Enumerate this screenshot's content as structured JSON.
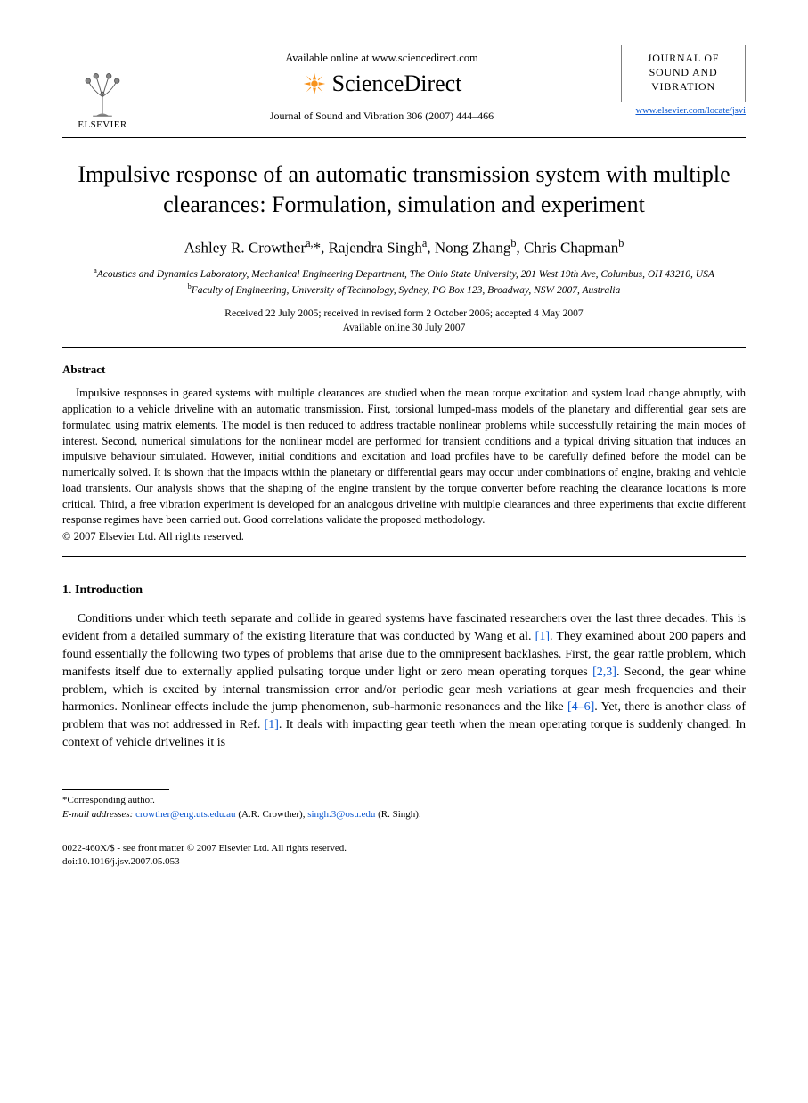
{
  "header": {
    "available_online": "Available online at www.sciencedirect.com",
    "sciencedirect": "ScienceDirect",
    "citation": "Journal of Sound and Vibration 306 (2007) 444–466",
    "elsevier_label": "ELSEVIER",
    "journal_box_line1": "JOURNAL OF",
    "journal_box_line2": "SOUND AND",
    "journal_box_line3": "VIBRATION",
    "journal_link": "www.elsevier.com/locate/jsvi"
  },
  "title": "Impulsive response of an automatic transmission system with multiple clearances: Formulation, simulation and experiment",
  "authors_html": "Ashley R. Crowther<sup>a,</sup>*, Rajendra Singh<sup>a</sup>, Nong Zhang<sup>b</sup>, Chris Chapman<sup>b</sup>",
  "affiliations": {
    "a": "Acoustics and Dynamics Laboratory, Mechanical Engineering Department, The Ohio State University, 201 West 19th Ave, Columbus, OH 43210, USA",
    "b": "Faculty of Engineering, University of Technology, Sydney, PO Box 123, Broadway, NSW 2007, Australia"
  },
  "dates": {
    "line1": "Received 22 July 2005; received in revised form 2 October 2006; accepted 4 May 2007",
    "line2": "Available online 30 July 2007"
  },
  "abstract": {
    "heading": "Abstract",
    "body": "Impulsive responses in geared systems with multiple clearances are studied when the mean torque excitation and system load change abruptly, with application to a vehicle driveline with an automatic transmission. First, torsional lumped-mass models of the planetary and differential gear sets are formulated using matrix elements. The model is then reduced to address tractable nonlinear problems while successfully retaining the main modes of interest. Second, numerical simulations for the nonlinear model are performed for transient conditions and a typical driving situation that induces an impulsive behaviour simulated. However, initial conditions and excitation and load profiles have to be carefully defined before the model can be numerically solved. It is shown that the impacts within the planetary or differential gears may occur under combinations of engine, braking and vehicle load transients. Our analysis shows that the shaping of the engine transient by the torque converter before reaching the clearance locations is more critical. Third, a free vibration experiment is developed for an analogous driveline with multiple clearances and three experiments that excite different response regimes have been carried out. Good correlations validate the proposed methodology.",
    "copyright": "© 2007 Elsevier Ltd. All rights reserved."
  },
  "section_intro": {
    "heading": "1.  Introduction",
    "body_parts": [
      "Conditions under which teeth separate and collide in geared systems have fascinated researchers over the last three decades. This is evident from a detailed summary of the existing literature that was conducted by Wang et al. ",
      "[1]",
      ". They examined about 200 papers and found essentially the following two types of problems that arise due to the omnipresent backlashes. First, the gear rattle problem, which manifests itself due to externally applied pulsating torque under light or zero mean operating torques ",
      "[2,3]",
      ". Second, the gear whine problem, which is excited by internal transmission error and/or periodic gear mesh variations at gear mesh frequencies and their harmonics. Nonlinear effects include the jump phenomenon, sub-harmonic resonances and the like ",
      "[4–6]",
      ". Yet, there is another class of problem that was not addressed in Ref. ",
      "[1]",
      ". It deals with impacting gear teeth when the mean operating torque is suddenly changed. In context of vehicle drivelines it is"
    ]
  },
  "footnote": {
    "corr": "*Corresponding author.",
    "emails_label": "E-mail addresses:",
    "email1": "crowther@eng.uts.edu.au",
    "name1": "(A.R. Crowther),",
    "email2": "singh.3@osu.edu",
    "name2": "(R. Singh)."
  },
  "issn": {
    "line1": "0022-460X/$ - see front matter © 2007 Elsevier Ltd. All rights reserved.",
    "line2": "doi:10.1016/j.jsv.2007.05.053"
  },
  "colors": {
    "link": "#0b57d0",
    "text": "#000000",
    "rule": "#000000",
    "box_border": "#808080",
    "elsevier_orange": "#e98300",
    "sd_orange": "#f7931e"
  }
}
